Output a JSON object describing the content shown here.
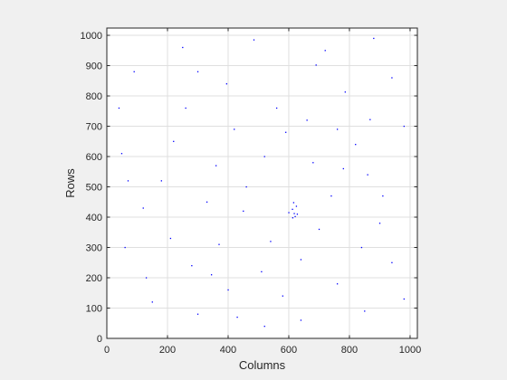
{
  "chart_data": {
    "type": "scatter",
    "title": "",
    "xlabel": "Columns",
    "ylabel": "Rows",
    "xlim": [
      0,
      1024
    ],
    "ylim": [
      0,
      1024
    ],
    "xticks": [
      0,
      200,
      400,
      600,
      800,
      1000
    ],
    "yticks": [
      0,
      100,
      200,
      300,
      400,
      500,
      600,
      700,
      800,
      900,
      1000
    ],
    "grid": true,
    "y_direction": "normal",
    "colors": {
      "points": "#0000ff",
      "axes": "#262626",
      "grid": "#dfdfdf",
      "figure_bg": "#f0f0f0",
      "axes_bg": "#ffffff"
    },
    "series": [
      {
        "points": [
          [
            430,
            70
          ],
          [
            510,
            220
          ],
          [
            400,
            160
          ],
          [
            345,
            210
          ],
          [
            49,
            610
          ],
          [
            395,
            840
          ],
          [
            868,
            722
          ],
          [
            690,
            902
          ],
          [
            485,
            985
          ],
          [
            786,
            813
          ],
          [
            616,
            448
          ],
          [
            625,
            436
          ],
          [
            612,
            426
          ],
          [
            618,
            412
          ],
          [
            613,
            398
          ],
          [
            621,
            402
          ],
          [
            628,
            410
          ],
          [
            600,
            415
          ],
          [
            60,
            300
          ],
          [
            120,
            430
          ],
          [
            180,
            520
          ],
          [
            220,
            650
          ],
          [
            260,
            760
          ],
          [
            300,
            880
          ],
          [
            330,
            450
          ],
          [
            360,
            570
          ],
          [
            420,
            690
          ],
          [
            460,
            500
          ],
          [
            540,
            320
          ],
          [
            580,
            140
          ],
          [
            640,
            260
          ],
          [
            700,
            360
          ],
          [
            740,
            470
          ],
          [
            780,
            560
          ],
          [
            820,
            640
          ],
          [
            860,
            540
          ],
          [
            900,
            380
          ],
          [
            940,
            250
          ],
          [
            980,
            130
          ],
          [
            150,
            120
          ],
          [
            90,
            880
          ],
          [
            250,
            960
          ],
          [
            560,
            760
          ],
          [
            660,
            720
          ],
          [
            720,
            950
          ],
          [
            940,
            860
          ],
          [
            980,
            700
          ],
          [
            880,
            990
          ],
          [
            300,
            80
          ],
          [
            520,
            40
          ],
          [
            640,
            60
          ],
          [
            760,
            180
          ],
          [
            850,
            90
          ],
          [
            130,
            200
          ],
          [
            210,
            330
          ],
          [
            280,
            240
          ],
          [
            370,
            310
          ],
          [
            450,
            420
          ],
          [
            520,
            600
          ],
          [
            590,
            680
          ],
          [
            680,
            580
          ],
          [
            760,
            690
          ],
          [
            840,
            300
          ],
          [
            910,
            470
          ],
          [
            70,
            520
          ],
          [
            40,
            760
          ]
        ]
      }
    ]
  }
}
